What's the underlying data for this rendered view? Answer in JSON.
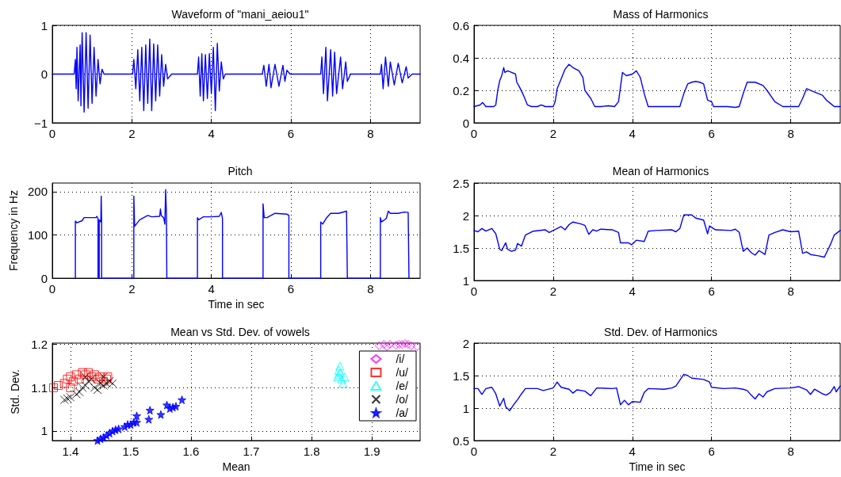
{
  "chart_data": [
    {
      "type": "line",
      "title": "Waveform of \"mani_aeiou1\"",
      "color": "#0000ff",
      "grid": true,
      "xlim": [
        0,
        9.25
      ],
      "xticks": [
        0,
        2,
        4,
        6,
        8
      ],
      "ylim": [
        -1,
        1
      ],
      "yticks": [
        {
          "value": -1,
          "label": "−1"
        },
        0,
        1
      ],
      "x": [
        0,
        0.55,
        0.58,
        0.6,
        0.62,
        0.65,
        0.7,
        0.72,
        0.75,
        0.8,
        0.85,
        0.9,
        0.95,
        1.0,
        1.05,
        1.1,
        1.15,
        1.2,
        1.25,
        1.3,
        2.02,
        2.05,
        2.1,
        2.15,
        2.2,
        2.25,
        2.3,
        2.35,
        2.4,
        2.45,
        2.5,
        2.55,
        2.6,
        2.65,
        2.7,
        2.75,
        2.8,
        2.85,
        2.9,
        3.0,
        3.65,
        3.68,
        3.72,
        3.76,
        3.8,
        3.85,
        3.9,
        3.95,
        4.0,
        4.05,
        4.1,
        4.15,
        4.2,
        4.25,
        4.3,
        4.35,
        5.28,
        5.32,
        5.38,
        5.45,
        5.5,
        5.6,
        5.7,
        5.8,
        5.85,
        5.9,
        5.98,
        6.75,
        6.78,
        6.82,
        6.88,
        6.92,
        7.0,
        7.05,
        7.1,
        7.15,
        7.25,
        7.3,
        7.38,
        7.42,
        7.5,
        8.25,
        8.28,
        8.32,
        8.38,
        8.45,
        8.5,
        8.6,
        8.7,
        8.8,
        8.9,
        8.95,
        9.05,
        9.25
      ],
      "values": [
        0,
        0,
        0.3,
        -0.3,
        0.55,
        -0.55,
        0.6,
        -0.65,
        0.85,
        -0.78,
        0.85,
        -0.7,
        0.8,
        -0.6,
        0.55,
        -0.45,
        0.3,
        -0.2,
        0.1,
        0,
        0,
        0.3,
        -0.3,
        0.5,
        -0.55,
        0.55,
        -0.75,
        0.6,
        -0.6,
        0.72,
        -0.75,
        0.62,
        -0.55,
        0.6,
        -0.45,
        0.4,
        -0.25,
        0.2,
        -0.1,
        0,
        0,
        0.35,
        -0.45,
        0.42,
        -0.55,
        0.4,
        -0.5,
        0.42,
        -0.4,
        0.55,
        -0.75,
        0.63,
        -0.35,
        0.25,
        -0.1,
        0,
        0,
        0.18,
        -0.25,
        0.2,
        -0.28,
        0.2,
        -0.25,
        0.18,
        -0.15,
        0.08,
        0,
        0,
        0.35,
        -0.4,
        0.55,
        -0.55,
        0.5,
        -0.45,
        0.45,
        -0.4,
        0.35,
        -0.3,
        0.25,
        -0.15,
        0,
        0,
        0.2,
        -0.3,
        0.35,
        -0.25,
        0.25,
        -0.22,
        0.22,
        -0.18,
        0.15,
        -0.08,
        0,
        0
      ]
    },
    {
      "type": "line",
      "title": "Mass of Harmonics",
      "color": "#0000ff",
      "grid": true,
      "xlim": [
        0,
        9.25
      ],
      "xticks": [
        0,
        2,
        4,
        6,
        8
      ],
      "ylim": [
        0,
        0.6
      ],
      "yticks": [
        0,
        0.2,
        0.4,
        0.6
      ],
      "x": [
        0,
        0.15,
        0.22,
        0.3,
        0.5,
        0.55,
        0.6,
        0.65,
        0.7,
        0.75,
        0.78,
        0.85,
        0.95,
        1.05,
        1.08,
        1.15,
        1.25,
        1.35,
        1.45,
        1.6,
        1.7,
        1.8,
        2.0,
        2.05,
        2.1,
        2.2,
        2.3,
        2.4,
        2.5,
        2.65,
        2.75,
        2.8,
        2.95,
        3.05,
        3.2,
        3.4,
        3.55,
        3.65,
        3.75,
        3.85,
        4.0,
        4.1,
        4.15,
        4.2,
        4.3,
        4.4,
        5.0,
        5.2,
        5.3,
        5.4,
        5.5,
        5.6,
        5.7,
        5.8,
        5.9,
        6.0,
        6.05,
        6.4,
        6.6,
        6.7,
        6.8,
        6.9,
        7.1,
        7.3,
        7.4,
        7.6,
        7.8,
        8.2,
        8.3,
        8.4,
        8.6,
        8.8,
        8.9,
        9.0,
        9.1,
        9.25
      ],
      "values": [
        0.1,
        0.11,
        0.125,
        0.1,
        0.1,
        0.11,
        0.2,
        0.26,
        0.29,
        0.34,
        0.31,
        0.32,
        0.31,
        0.3,
        0.25,
        0.22,
        0.17,
        0.11,
        0.1,
        0.1,
        0.11,
        0.1,
        0.1,
        0.13,
        0.21,
        0.27,
        0.33,
        0.36,
        0.34,
        0.32,
        0.28,
        0.2,
        0.15,
        0.1,
        0.1,
        0.105,
        0.1,
        0.13,
        0.31,
        0.29,
        0.3,
        0.32,
        0.3,
        0.28,
        0.18,
        0.1,
        0.1,
        0.1,
        0.18,
        0.24,
        0.25,
        0.255,
        0.25,
        0.24,
        0.14,
        0.13,
        0.1,
        0.1,
        0.095,
        0.1,
        0.18,
        0.25,
        0.25,
        0.23,
        0.2,
        0.13,
        0.1,
        0.1,
        0.15,
        0.21,
        0.19,
        0.17,
        0.14,
        0.12,
        0.1,
        0.1
      ]
    },
    {
      "type": "line",
      "title": "Pitch",
      "xlabel": "Time in sec",
      "ylabel": "Frequency in Hz",
      "color": "#0000ff",
      "grid": true,
      "xlim": [
        0,
        9.25
      ],
      "xticks": [
        0,
        2,
        4,
        6,
        8
      ],
      "ylim": [
        0,
        220
      ],
      "yticks": [
        0,
        100,
        200
      ],
      "x": [
        0.58,
        0.58,
        0.62,
        0.75,
        0.8,
        1.1,
        1.12,
        1.15,
        1.15,
        1.18,
        1.18,
        1.22,
        1.23,
        1.24,
        1.24,
        2.05,
        2.05,
        2.07,
        2.2,
        2.4,
        2.5,
        2.7,
        2.72,
        2.74,
        2.8,
        2.83,
        2.85,
        2.87,
        2.88,
        3.65,
        3.65,
        3.68,
        3.8,
        4.0,
        4.2,
        4.25,
        4.28,
        4.28,
        5.3,
        5.3,
        5.33,
        5.4,
        5.6,
        5.9,
        5.95,
        5.95,
        6.75,
        6.75,
        6.8,
        6.9,
        7.0,
        7.2,
        7.4,
        7.42,
        8.25,
        8.25,
        8.28,
        8.4,
        8.45,
        8.5,
        8.7,
        8.85,
        8.95,
        8.97
      ],
      "values": [
        0,
        132,
        128,
        133,
        140,
        140,
        143,
        138,
        0,
        0,
        135,
        130,
        190,
        130,
        0,
        0,
        190,
        120,
        135,
        145,
        142,
        143,
        160,
        145,
        140,
        125,
        205,
        150,
        0,
        0,
        140,
        135,
        142,
        142,
        143,
        152,
        138,
        0,
        0,
        172,
        140,
        140,
        150,
        148,
        145,
        0,
        0,
        130,
        125,
        140,
        150,
        150,
        155,
        0,
        0,
        140,
        130,
        138,
        155,
        150,
        150,
        153,
        152,
        0
      ]
    },
    {
      "type": "line",
      "title": "Mean of Harmonics",
      "color": "#0000ff",
      "grid": true,
      "xlim": [
        0,
        9.25
      ],
      "xticks": [
        0,
        2,
        4,
        6,
        8
      ],
      "ylim": [
        1,
        2.5
      ],
      "yticks": [
        1,
        1.5,
        2,
        2.5
      ],
      "x": [
        0,
        0.1,
        0.2,
        0.3,
        0.45,
        0.55,
        0.65,
        0.7,
        0.8,
        0.85,
        0.95,
        1.05,
        1.1,
        1.2,
        1.3,
        1.5,
        1.8,
        1.9,
        2.1,
        2.2,
        2.3,
        2.4,
        2.5,
        2.7,
        2.8,
        2.9,
        3.0,
        3.1,
        3.2,
        3.5,
        3.65,
        3.7,
        3.9,
        3.98,
        4.1,
        4.3,
        4.4,
        4.6,
        5.0,
        5.1,
        5.2,
        5.3,
        5.5,
        5.6,
        5.8,
        5.9,
        5.95,
        6.1,
        6.5,
        6.6,
        6.7,
        6.8,
        6.9,
        7.0,
        7.1,
        7.2,
        7.35,
        7.45,
        7.6,
        7.8,
        8.0,
        8.2,
        8.3,
        8.4,
        8.5,
        8.7,
        8.85,
        9.0,
        9.1,
        9.25
      ],
      "values": [
        1.77,
        1.75,
        1.8,
        1.76,
        1.8,
        1.72,
        1.48,
        1.46,
        1.58,
        1.48,
        1.45,
        1.47,
        1.57,
        1.53,
        1.7,
        1.76,
        1.78,
        1.74,
        1.8,
        1.83,
        1.78,
        1.86,
        1.9,
        1.87,
        1.85,
        1.71,
        1.78,
        1.76,
        1.79,
        1.78,
        1.74,
        1.58,
        1.58,
        1.55,
        1.62,
        1.6,
        1.76,
        1.77,
        1.78,
        1.75,
        1.8,
        2.01,
        2.01,
        1.96,
        1.93,
        1.72,
        1.84,
        1.78,
        1.77,
        1.79,
        1.74,
        1.45,
        1.5,
        1.43,
        1.39,
        1.46,
        1.4,
        1.7,
        1.74,
        1.78,
        1.75,
        1.76,
        1.42,
        1.44,
        1.4,
        1.38,
        1.36,
        1.55,
        1.7,
        1.77
      ]
    },
    {
      "type": "scatter",
      "title": "Mean vs Std. Dev. of vowels",
      "xlabel": "Mean",
      "ylabel": "Std. Dev.",
      "grid": true,
      "legend": "top right",
      "xlim": [
        1.37,
        1.98
      ],
      "xticks": [
        1.4,
        1.5,
        1.6,
        1.7,
        1.8,
        1.9
      ],
      "ylim": [
        0.978,
        1.203
      ],
      "yticks": [
        1,
        1.1,
        1.2
      ],
      "series": [
        {
          "name": "/i/",
          "color": "#ff00ff",
          "marker": "diamond",
          "x": [
            1.912,
            1.92,
            1.925,
            1.93,
            1.94,
            1.945,
            1.95,
            1.955,
            1.96,
            1.965,
            1.975
          ],
          "values": [
            1.197,
            1.2,
            1.195,
            1.2,
            1.198,
            1.2,
            1.2,
            1.202,
            1.2,
            1.197,
            1.195
          ]
        },
        {
          "name": "/u/",
          "color": "#ff0000",
          "marker": "square",
          "x": [
            1.372,
            1.38,
            1.39,
            1.395,
            1.4,
            1.405,
            1.41,
            1.415,
            1.42,
            1.425,
            1.43,
            1.435,
            1.44,
            1.445,
            1.45,
            1.455,
            1.46,
            1.462,
            1.4
          ],
          "values": [
            1.1,
            1.105,
            1.11,
            1.12,
            1.125,
            1.115,
            1.13,
            1.12,
            1.135,
            1.13,
            1.135,
            1.125,
            1.13,
            1.12,
            1.125,
            1.115,
            1.12,
            1.125,
            1.1
          ]
        },
        {
          "name": "/e/",
          "color": "#00ffff",
          "marker": "triangle",
          "x": [
            1.843,
            1.845,
            1.845,
            1.847,
            1.848,
            1.85,
            1.852,
            1.855
          ],
          "values": [
            1.125,
            1.13,
            1.14,
            1.15,
            1.135,
            1.12,
            1.11,
            1.125
          ]
        },
        {
          "name": "/o/",
          "color": "#000000",
          "marker": "cross",
          "x": [
            1.39,
            1.395,
            1.4,
            1.41,
            1.415,
            1.42,
            1.425,
            1.43,
            1.435,
            1.44,
            1.445,
            1.45,
            1.455,
            1.455,
            1.46,
            1.465,
            1.47,
            1.425
          ],
          "values": [
            1.072,
            1.075,
            1.078,
            1.085,
            1.09,
            1.1,
            1.105,
            1.115,
            1.12,
            1.1,
            1.095,
            1.11,
            1.125,
            1.105,
            1.11,
            1.115,
            1.11,
            1.125
          ]
        },
        {
          "name": "/a/",
          "color": "#0000ff",
          "marker": "star",
          "x": [
            1.445,
            1.45,
            1.455,
            1.46,
            1.465,
            1.47,
            1.475,
            1.48,
            1.49,
            1.495,
            1.5,
            1.505,
            1.51,
            1.51,
            1.53,
            1.532,
            1.55,
            1.56,
            1.565,
            1.57,
            1.575,
            1.585
          ],
          "values": [
            0.978,
            0.982,
            0.985,
            0.99,
            0.995,
            1.0,
            1.003,
            1.005,
            1.01,
            1.015,
            1.015,
            1.02,
            1.02,
            1.035,
            1.027,
            1.048,
            1.038,
            1.06,
            1.052,
            1.055,
            1.057,
            1.072
          ]
        }
      ]
    },
    {
      "type": "line",
      "title": "Std. Dev. of Harmonics",
      "xlabel": "Time in sec",
      "color": "#0000ff",
      "grid": true,
      "xlim": [
        0,
        9.25
      ],
      "xticks": [
        0,
        2,
        4,
        6,
        8
      ],
      "ylim": [
        0.5,
        2
      ],
      "yticks": [
        0.5,
        1,
        1.5,
        2
      ],
      "x": [
        0,
        0.1,
        0.2,
        0.3,
        0.45,
        0.55,
        0.65,
        0.75,
        0.8,
        0.9,
        1.0,
        1.1,
        1.2,
        1.3,
        1.6,
        1.75,
        2.0,
        2.1,
        2.2,
        2.4,
        2.5,
        2.6,
        2.8,
        2.95,
        3.1,
        3.5,
        3.6,
        3.7,
        3.8,
        3.9,
        4.0,
        4.2,
        4.3,
        4.4,
        4.8,
        5.0,
        5.1,
        5.3,
        5.4,
        5.5,
        5.8,
        5.95,
        6.0,
        6.3,
        6.6,
        6.8,
        6.9,
        7.0,
        7.1,
        7.2,
        7.3,
        7.4,
        7.6,
        8.0,
        8.2,
        8.4,
        8.5,
        8.6,
        8.8,
        8.9,
        9.0,
        9.1,
        9.15,
        9.25
      ],
      "values": [
        1.3,
        1.3,
        1.21,
        1.3,
        1.32,
        1.22,
        1.03,
        1.15,
        1.02,
        0.96,
        1.05,
        1.13,
        1.22,
        1.3,
        1.3,
        1.27,
        1.31,
        1.4,
        1.32,
        1.29,
        1.23,
        1.28,
        1.26,
        1.19,
        1.31,
        1.3,
        1.31,
        1.05,
        1.12,
        1.05,
        1.1,
        1.09,
        1.24,
        1.3,
        1.29,
        1.31,
        1.34,
        1.52,
        1.5,
        1.46,
        1.44,
        1.4,
        1.32,
        1.3,
        1.31,
        1.29,
        1.27,
        1.2,
        1.14,
        1.22,
        1.17,
        1.25,
        1.3,
        1.31,
        1.33,
        1.28,
        1.21,
        1.29,
        1.22,
        1.2,
        1.24,
        1.33,
        1.25,
        1.34
      ]
    }
  ]
}
